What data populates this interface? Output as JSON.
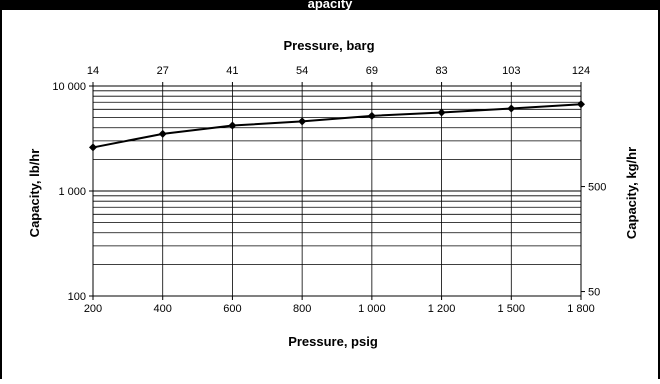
{
  "header": {
    "title": "apacity",
    "background": "#000000",
    "color": "#ffffff"
  },
  "chart_data": {
    "type": "line",
    "x_top_label": "Pressure, barg",
    "x_bottom_label": "Pressure, psig",
    "y_left_label": "Capacity, lb/hr",
    "y_right_label": "Capacity, kg/hr",
    "x_bottom_ticks": [
      "200",
      "400",
      "600",
      "800",
      "1 000",
      "1 200",
      "1 500",
      "1 800"
    ],
    "x_top_ticks": [
      "14",
      "27",
      "41",
      "54",
      "69",
      "83",
      "103",
      "124"
    ],
    "y_left_scale": "log",
    "y_left_range": [
      100,
      10000
    ],
    "y_left_ticks": [
      {
        "value": 10000,
        "label": "10 000"
      },
      {
        "value": 1000,
        "label": "1 000"
      },
      {
        "value": 100,
        "label": "100"
      }
    ],
    "y_right_ticks": [
      {
        "value": 500,
        "label": "500"
      },
      {
        "value": 50,
        "label": "50"
      }
    ],
    "grid": true,
    "line_color": "#000000",
    "series": [
      {
        "x": [
          "200",
          "400",
          "600",
          "800",
          "1 000",
          "1 200",
          "1 500",
          "1 800"
        ],
        "values": [
          2600,
          3500,
          4200,
          4600,
          5200,
          5600,
          6100,
          6700
        ]
      }
    ]
  }
}
